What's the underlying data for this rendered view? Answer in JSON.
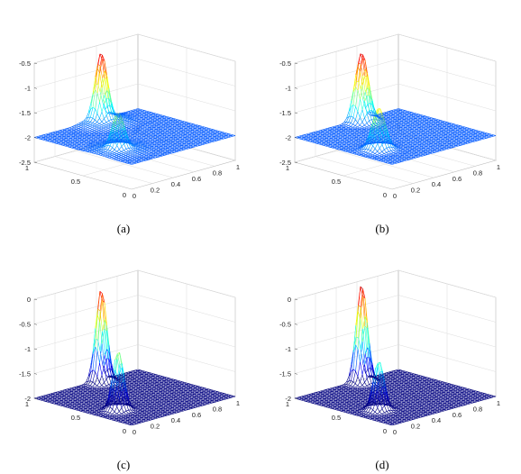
{
  "chart_data": [
    {
      "type": "surface",
      "caption": "(a)",
      "z_ticks": [
        "-0.5",
        "-1",
        "-1.5",
        "-2",
        "-2.5"
      ],
      "zlim": [
        -2.5,
        -0.5
      ],
      "x_ticks": [
        "0",
        "0.2",
        "0.4",
        "0.6",
        "0.8",
        "1"
      ],
      "y_ticks": [
        "0",
        "0.5",
        "1"
      ],
      "xlim": [
        0,
        1
      ],
      "ylim": [
        0,
        1
      ],
      "baseline": -2,
      "peaks": [
        {
          "x": 0.6,
          "y": 0.95,
          "z": -0.5
        },
        {
          "x": 0.2,
          "y": 0.35,
          "z": -1.2
        }
      ],
      "colormap": "jet"
    },
    {
      "type": "surface",
      "caption": "(b)",
      "z_ticks": [
        "-0.5",
        "-1",
        "-1.5",
        "-2",
        "-2.5"
      ],
      "zlim": [
        -2.5,
        -0.5
      ],
      "x_ticks": [
        "0",
        "0.2",
        "0.4",
        "0.6",
        "0.8",
        "1"
      ],
      "y_ticks": [
        "0",
        "0.5",
        "1"
      ],
      "xlim": [
        0,
        1
      ],
      "ylim": [
        0,
        1
      ],
      "baseline": -2,
      "peaks": [
        {
          "x": 0.6,
          "y": 0.95,
          "z": -0.5
        },
        {
          "x": 0.2,
          "y": 0.35,
          "z": -1.1
        }
      ],
      "colormap": "jet"
    },
    {
      "type": "surface",
      "caption": "(c)",
      "z_ticks": [
        "0",
        "-0.5",
        "-1",
        "-1.5",
        "-2"
      ],
      "zlim": [
        -2,
        0
      ],
      "x_ticks": [
        "0",
        "0.2",
        "0.4",
        "0.6",
        "0.8",
        "1"
      ],
      "y_ticks": [
        "0",
        "0.5",
        "1"
      ],
      "xlim": [
        0,
        1
      ],
      "ylim": [
        0,
        1
      ],
      "baseline": -2,
      "peaks": [
        {
          "x": 0.6,
          "y": 0.95,
          "z": -0.1
        },
        {
          "x": 0.2,
          "y": 0.35,
          "z": -0.8
        }
      ],
      "colormap": "jet"
    },
    {
      "type": "surface",
      "caption": "(d)",
      "z_ticks": [
        "0",
        "-0.5",
        "-1",
        "-1.5",
        "-2"
      ],
      "zlim": [
        -2,
        0
      ],
      "x_ticks": [
        "0",
        "0.2",
        "0.4",
        "0.6",
        "0.8",
        "1"
      ],
      "y_ticks": [
        "0",
        "0.5",
        "1"
      ],
      "xlim": [
        0,
        1
      ],
      "ylim": [
        0,
        1
      ],
      "baseline": -2,
      "peaks": [
        {
          "x": 0.6,
          "y": 0.95,
          "z": 0.0
        },
        {
          "x": 0.2,
          "y": 0.35,
          "z": -1.0
        }
      ],
      "colormap": "jet"
    }
  ]
}
